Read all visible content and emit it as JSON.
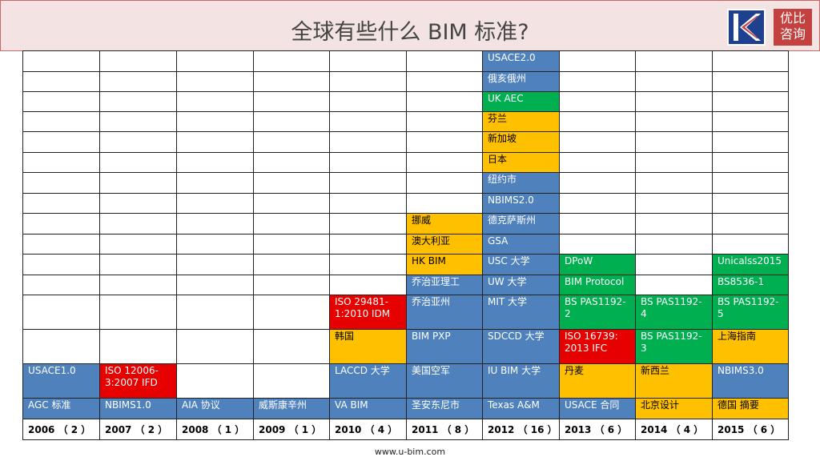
{
  "title": "全球有些什么 BIM 标准?",
  "logo": {
    "icon": "uk-logo-icon",
    "text_line1": "优比",
    "text_line2": "咨询"
  },
  "footer": {
    "url": "www.u-bim.com"
  },
  "years": [
    "2006 （ 2 ）",
    "2007 （ 2 ）",
    "2008 （ 1 ）",
    "2009 （ 1 ）",
    "2010 （ 4 ）",
    "2011 （ 8 ）",
    "2012 （ 16 ）",
    "2013 （ 6 ）",
    "2014 （ 4 ）",
    "2015 （ 6 ）"
  ],
  "cells": {
    "c2012": [
      "USACE2.0",
      "俄亥俄州",
      "UK AEC",
      "芬兰",
      "新加坡",
      "日本",
      "纽约市",
      "NBIMS2.0",
      "德克萨斯州",
      "GSA",
      "USC 大学",
      "UW 大学",
      "MIT 大学",
      "SDCCD 大学",
      "IU BIM 大学",
      "Texas A&M"
    ],
    "c2011": [
      "挪威",
      "澳大利亚",
      "HK BIM",
      "乔治亚理工",
      "乔治亚州",
      "BIM PXP",
      "美国空军",
      "圣安东尼市"
    ],
    "c2010": [
      "ISO 29481-1:2010 IDM",
      "韩国",
      "LACCD 大学",
      "VA BIM"
    ],
    "c2013": [
      "DPoW",
      "BIM Protocol",
      "BS PAS1192-2",
      "ISO 16739: 2013 IFC",
      "丹麦",
      "USACE 合同"
    ],
    "c2014": [
      "BS PAS1192-4",
      "BS PAS1192-3",
      "新西兰",
      "北京设计"
    ],
    "c2015": [
      "Unicalss2015",
      "BS8536-1",
      "BS PAS1192-5",
      "上海指南",
      "NBIMS3.0",
      "德国 摘要"
    ],
    "c2006": [
      "USACE1.0",
      "AGC 标准"
    ],
    "c2007": [
      "ISO 12006-3:2007 IFD",
      "NBIMS1.0"
    ],
    "c2008": [
      "AIA 协议"
    ],
    "c2009": [
      "威斯康辛州"
    ]
  },
  "colors": {
    "blue": "#4f81bd",
    "green": "#00b050",
    "yellow": "#ffc000",
    "red": "#e60000",
    "logo_red": "#c3423f"
  }
}
